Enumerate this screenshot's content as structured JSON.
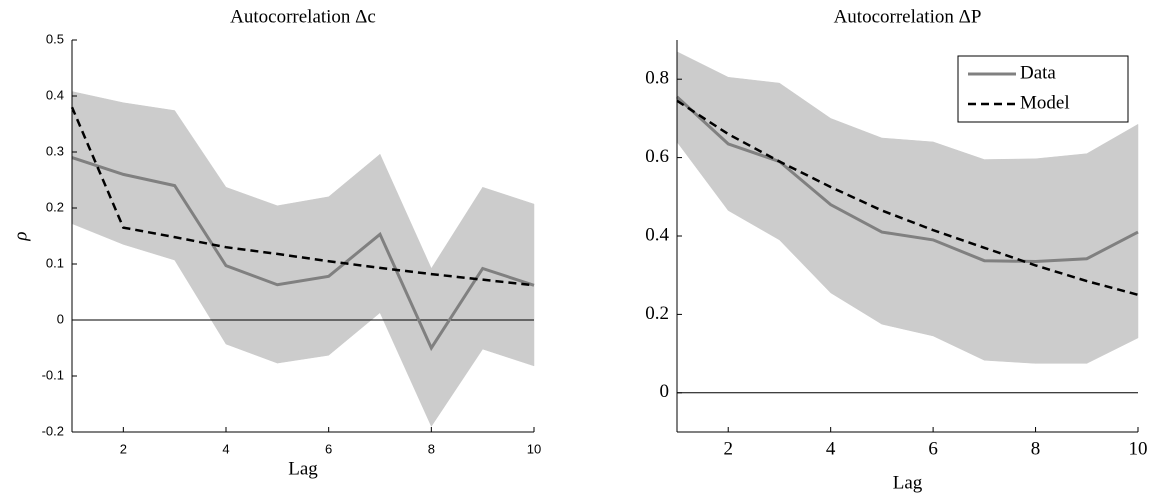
{
  "chart_data": [
    {
      "type": "line",
      "title": "Autocorrelation Δc",
      "xlabel": "Lag",
      "ylabel": "ρ",
      "x": [
        1,
        2,
        3,
        4,
        5,
        6,
        7,
        8,
        9,
        10
      ],
      "xlim": [
        1,
        10
      ],
      "xticks": [
        2,
        4,
        6,
        8,
        10
      ],
      "ylim": [
        -0.2,
        0.5
      ],
      "yticks": [
        -0.2,
        -0.1,
        0,
        0.1,
        0.2,
        0.3,
        0.4,
        0.5
      ],
      "hline": 0,
      "band": {
        "color": "#cccccc",
        "upper": [
          0.408,
          0.388,
          0.374,
          0.237,
          0.204,
          0.22,
          0.296,
          0.092,
          0.237,
          0.207
        ],
        "lower": [
          0.172,
          0.135,
          0.107,
          -0.043,
          -0.077,
          -0.063,
          0.013,
          -0.19,
          -0.052,
          -0.082
        ]
      },
      "series": [
        {
          "color": "#808080",
          "linestyle": "solid",
          "values": [
            0.29,
            0.26,
            0.24,
            0.097,
            0.063,
            0.078,
            0.153,
            -0.05,
            0.092,
            0.062
          ]
        },
        {
          "color": "#000000",
          "linestyle": "dashed",
          "values": [
            0.38,
            0.165,
            0.148,
            0.13,
            0.118,
            0.105,
            0.093,
            0.082,
            0.072,
            0.062
          ]
        }
      ]
    },
    {
      "type": "line",
      "title": "Autocorrelation ΔP",
      "xlabel": "Lag",
      "x": [
        1,
        2,
        3,
        4,
        5,
        6,
        7,
        8,
        9,
        10
      ],
      "xlim": [
        1,
        10
      ],
      "xticks": [
        2,
        4,
        6,
        8,
        10
      ],
      "ylim": [
        -0.1,
        0.9
      ],
      "yticks": [
        0,
        0.2,
        0.4,
        0.6,
        0.8
      ],
      "hline": 0,
      "legend": "upper right",
      "band": {
        "color": "#cccccc",
        "upper": [
          0.87,
          0.805,
          0.79,
          0.7,
          0.65,
          0.64,
          0.595,
          0.597,
          0.61,
          0.685
        ],
        "lower": [
          0.64,
          0.465,
          0.39,
          0.255,
          0.175,
          0.145,
          0.083,
          0.075,
          0.075,
          0.14
        ]
      },
      "series": [
        {
          "name": "Data",
          "color": "#808080",
          "linestyle": "solid",
          "values": [
            0.755,
            0.635,
            0.59,
            0.48,
            0.41,
            0.39,
            0.337,
            0.335,
            0.342,
            0.41
          ]
        },
        {
          "name": "Model",
          "color": "#000000",
          "linestyle": "dashed",
          "values": [
            0.745,
            0.66,
            0.59,
            0.525,
            0.465,
            0.415,
            0.37,
            0.325,
            0.285,
            0.25
          ]
        }
      ]
    }
  ]
}
